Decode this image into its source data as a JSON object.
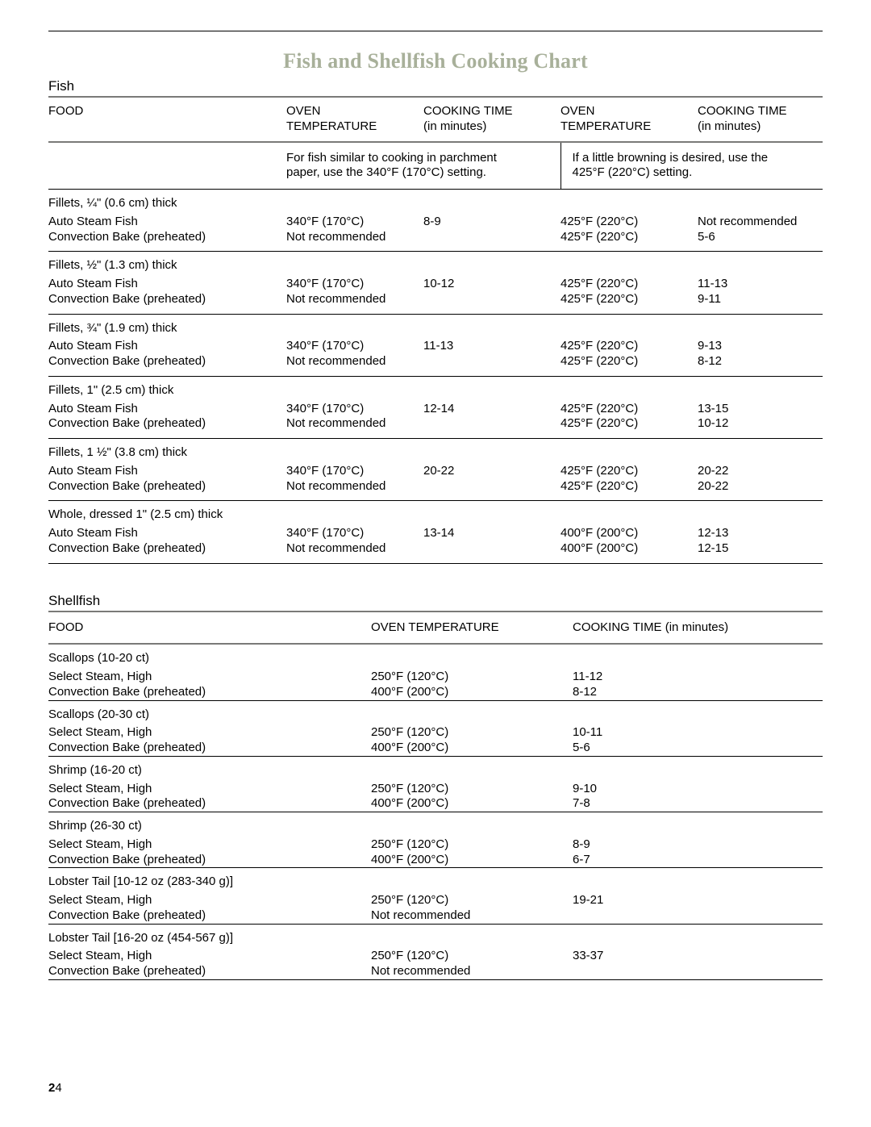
{
  "title": "Fish and Shellfish Cooking Chart",
  "page_number_bold": "2",
  "page_number_rest": "4",
  "fish": {
    "section_label": "Fish",
    "headers": {
      "food": "FOOD",
      "temp1_a": "OVEN",
      "temp1_b": "TEMPERATURE",
      "time1_a": "COOKING TIME",
      "time1_b": "(in minutes)",
      "temp2_a": "OVEN",
      "temp2_b": "TEMPERATURE",
      "time2_a": "COOKING TIME",
      "time2_b": "(in minutes)"
    },
    "note_left_a": "For fish similar to cooking in parchment",
    "note_left_b": "paper, use the 340°F (170°C) setting.",
    "note_right_a": "If a little browning is desired, use the",
    "note_right_b": "425°F (220°C) setting.",
    "groups": [
      {
        "category": "Fillets, ¼\" (0.6 cm) thick",
        "rows": [
          {
            "food": "Auto Steam Fish",
            "t1": "340°F (170°C)",
            "c1": "8-9",
            "t2": "425°F (220°C)",
            "c2": "Not recommended"
          },
          {
            "food": "Convection Bake (preheated)",
            "t1": "Not recommended",
            "c1": "",
            "t2": "425°F (220°C)",
            "c2": "5-6"
          }
        ]
      },
      {
        "category": "Fillets, ½\" (1.3 cm) thick",
        "rows": [
          {
            "food": "Auto Steam Fish",
            "t1": "340°F (170°C)",
            "c1": "10-12",
            "t2": "425°F (220°C)",
            "c2": "11-13"
          },
          {
            "food": "Convection Bake (preheated)",
            "t1": "Not recommended",
            "c1": "",
            "t2": "425°F (220°C)",
            "c2": "9-11"
          }
        ]
      },
      {
        "category": "Fillets, ¾\" (1.9 cm) thick",
        "rows": [
          {
            "food": "Auto Steam Fish",
            "t1": "340°F (170°C)",
            "c1": "11-13",
            "t2": "425°F (220°C)",
            "c2": "9-13"
          },
          {
            "food": "Convection Bake (preheated)",
            "t1": "Not recommended",
            "c1": "",
            "t2": "425°F (220°C)",
            "c2": "8-12"
          }
        ]
      },
      {
        "category": "Fillets, 1\" (2.5 cm) thick",
        "rows": [
          {
            "food": "Auto Steam Fish",
            "t1": "340°F (170°C)",
            "c1": "12-14",
            "t2": "425°F (220°C)",
            "c2": "13-15"
          },
          {
            "food": "Convection Bake (preheated)",
            "t1": "Not recommended",
            "c1": "",
            "t2": "425°F (220°C)",
            "c2": "10-12"
          }
        ]
      },
      {
        "category": "Fillets, 1 ½\" (3.8 cm) thick",
        "rows": [
          {
            "food": "Auto Steam Fish",
            "t1": "340°F (170°C)",
            "c1": "20-22",
            "t2": "425°F (220°C)",
            "c2": "20-22"
          },
          {
            "food": "Convection Bake (preheated)",
            "t1": "Not recommended",
            "c1": "",
            "t2": "425°F (220°C)",
            "c2": "20-22"
          }
        ]
      },
      {
        "category": "Whole, dressed 1\" (2.5 cm) thick",
        "rows": [
          {
            "food": "Auto Steam Fish",
            "t1": "340°F (170°C)",
            "c1": "13-14",
            "t2": "400°F (200°C)",
            "c2": "12-13"
          },
          {
            "food": "Convection Bake (preheated)",
            "t1": "Not recommended",
            "c1": "",
            "t2": "400°F (200°C)",
            "c2": "12-15"
          }
        ]
      }
    ]
  },
  "shellfish": {
    "section_label": "Shellfish",
    "headers": {
      "food": "FOOD",
      "temp": "OVEN TEMPERATURE",
      "time": "COOKING TIME (in minutes)"
    },
    "groups": [
      {
        "category": "Scallops (10-20 ct)",
        "rows": [
          {
            "food": "Select Steam, High",
            "temp": "250°F (120°C)",
            "time": "11-12"
          },
          {
            "food": "Convection Bake (preheated)",
            "temp": "400°F (200°C)",
            "time": "8-12"
          }
        ]
      },
      {
        "category": "Scallops (20-30 ct)",
        "rows": [
          {
            "food": "Select Steam, High",
            "temp": "250°F (120°C)",
            "time": "10-11"
          },
          {
            "food": "Convection Bake (preheated)",
            "temp": "400°F (200°C)",
            "time": "5-6"
          }
        ]
      },
      {
        "category": "Shrimp (16-20 ct)",
        "rows": [
          {
            "food": "Select Steam, High",
            "temp": "250°F (120°C)",
            "time": "9-10"
          },
          {
            "food": "Convection Bake (preheated)",
            "temp": "400°F (200°C)",
            "time": "7-8"
          }
        ]
      },
      {
        "category": "Shrimp (26-30 ct)",
        "rows": [
          {
            "food": "Select Steam, High",
            "temp": "250°F (120°C)",
            "time": "8-9"
          },
          {
            "food": "Convection Bake (preheated)",
            "temp": "400°F (200°C)",
            "time": "6-7"
          }
        ]
      },
      {
        "category": "Lobster Tail [10-12 oz (283-340 g)]",
        "rows": [
          {
            "food": "Select Steam, High",
            "temp": "250°F (120°C)",
            "time": "19-21"
          },
          {
            "food": "Convection Bake (preheated)",
            "temp": "Not recommended",
            "time": ""
          }
        ]
      },
      {
        "category": "Lobster Tail [16-20 oz (454-567 g)]",
        "rows": [
          {
            "food": "Select Steam, High",
            "temp": "250°F (120°C)",
            "time": "33-37"
          },
          {
            "food": "Convection Bake (preheated)",
            "temp": "Not recommended",
            "time": ""
          }
        ]
      }
    ]
  }
}
